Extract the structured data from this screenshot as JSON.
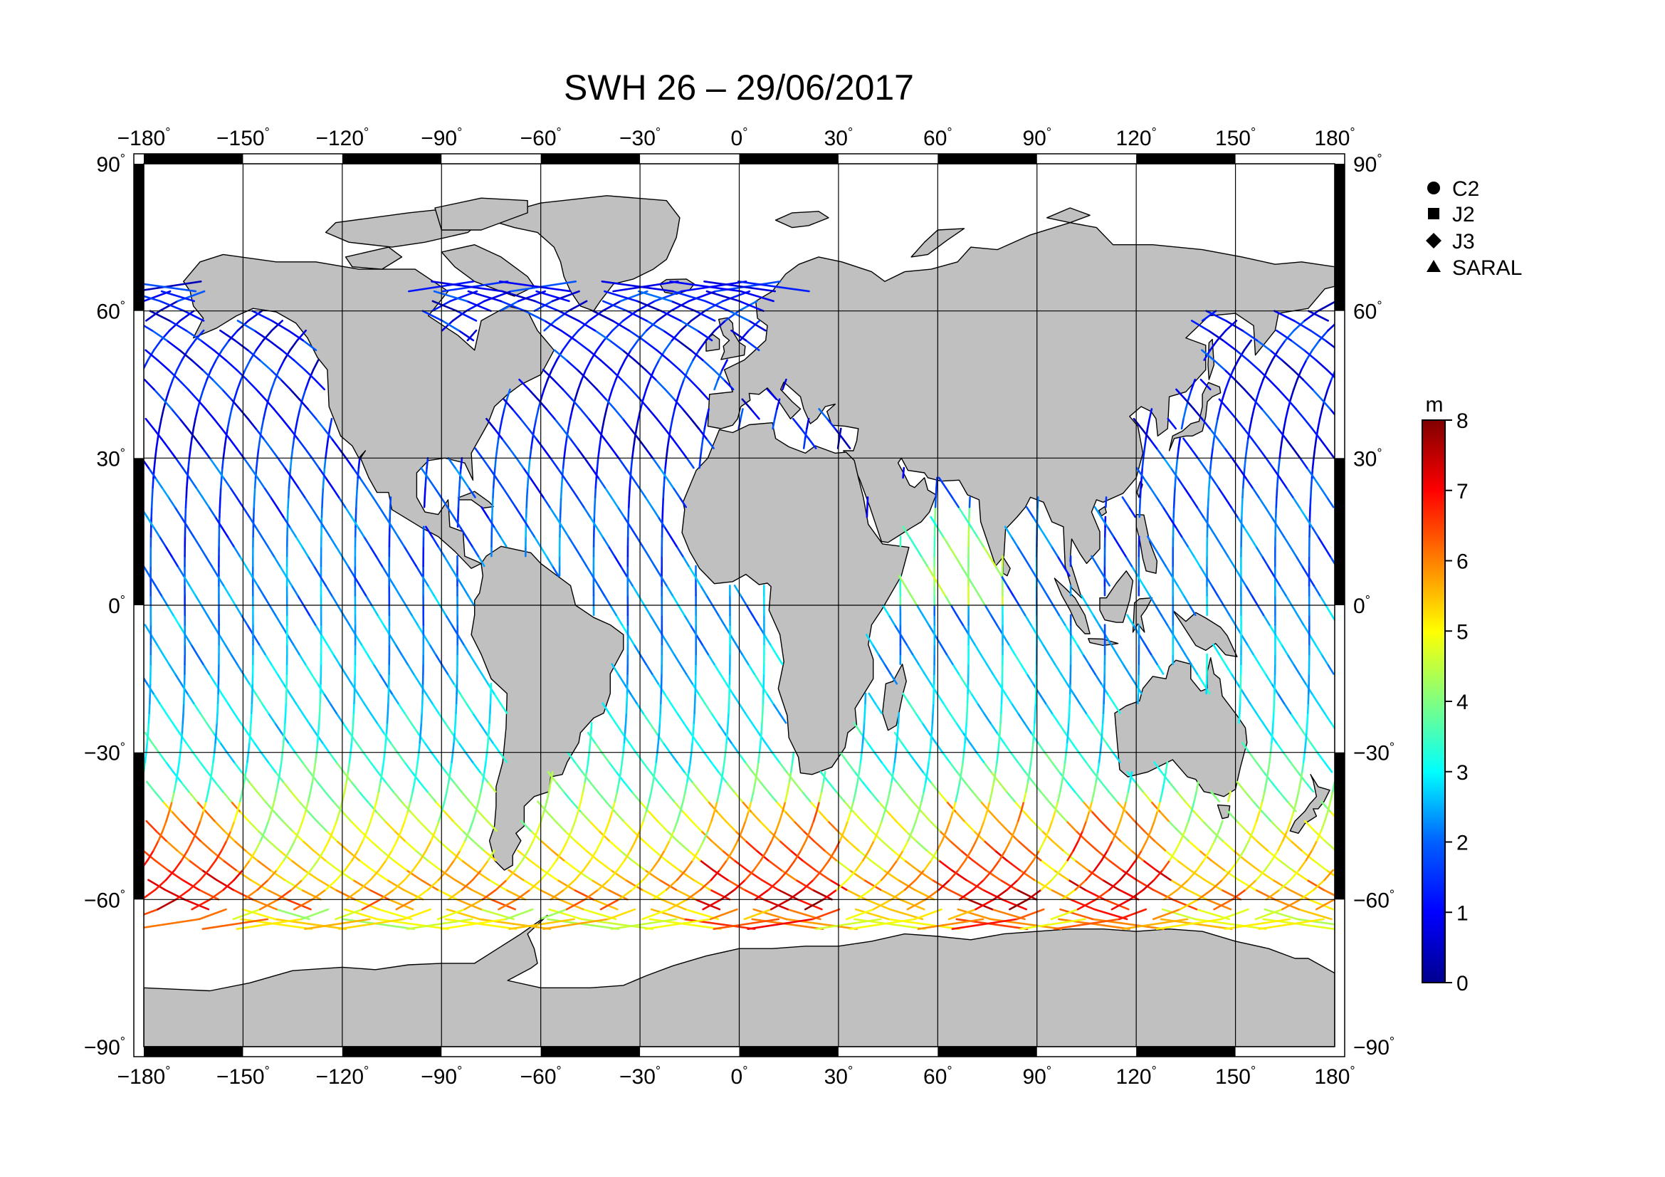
{
  "title": "SWH 26 – 29/06/2017",
  "map": {
    "projection": "equirectangular",
    "lon_range": [
      -180,
      180
    ],
    "lat_range": [
      -90,
      90
    ],
    "lon_ticks": [
      -180,
      -150,
      -120,
      -90,
      -60,
      -30,
      0,
      30,
      60,
      90,
      120,
      150,
      180
    ],
    "lat_ticks": [
      -90,
      -60,
      -30,
      0,
      30,
      60,
      90
    ],
    "lon_tick_labels": [
      "−180",
      "−150",
      "−120",
      "−90",
      "−60",
      "−30",
      "0",
      "30",
      "60",
      "90",
      "120",
      "150",
      "180"
    ],
    "lat_tick_labels": [
      "−90",
      "−60",
      "−30",
      "0",
      "30",
      "60",
      "90"
    ],
    "degree_symbol": "°",
    "grid": true,
    "land_color": "#c0c0c0",
    "ocean_color": "#ffffff"
  },
  "legend": {
    "items": [
      {
        "label": "C2",
        "symbol": "circle-icon"
      },
      {
        "label": "J2",
        "symbol": "square-icon"
      },
      {
        "label": "J3",
        "symbol": "diamond-icon"
      },
      {
        "label": "SARAL",
        "symbol": "triangle-icon"
      }
    ]
  },
  "colorbar": {
    "unit": "m",
    "min": 0,
    "max": 8,
    "ticks": [
      "0",
      "1",
      "2",
      "3",
      "4",
      "5",
      "6",
      "7",
      "8"
    ],
    "colormap": "jet"
  },
  "chart_data": {
    "type": "scatter",
    "variable": "significant wave height",
    "value_range": [
      0,
      8
    ],
    "tracks": "satellite altimeter ground tracks between about 66°N and 66°S",
    "swh_by_latitude_band": [
      {
        "lat_band": "60N–30N",
        "typical_swh_m": [
          0.5,
          2
        ]
      },
      {
        "lat_band": "30N–0",
        "typical_swh_m": [
          1,
          2.5
        ]
      },
      {
        "lat_band": "0–30S",
        "typical_swh_m": [
          2,
          3.5
        ]
      },
      {
        "lat_band": "30S–45S",
        "typical_swh_m": [
          3,
          5
        ]
      },
      {
        "lat_band": "45S–66S",
        "typical_swh_m": [
          4,
          8
        ]
      }
    ]
  }
}
